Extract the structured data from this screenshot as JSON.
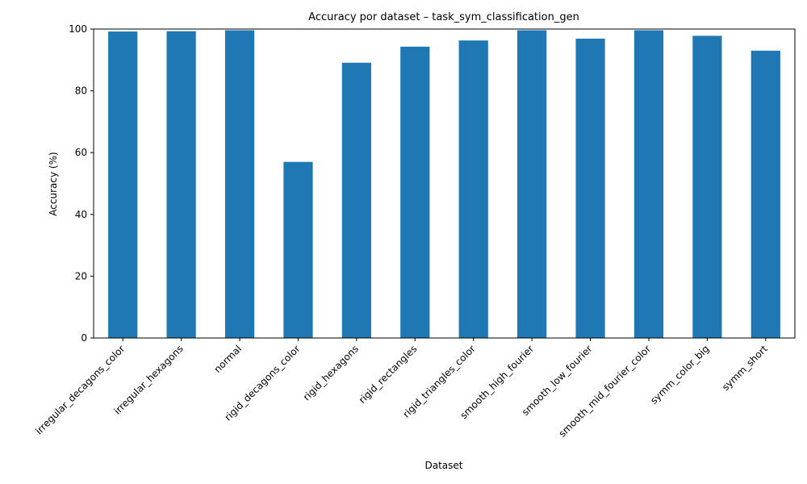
{
  "chart_data": {
    "type": "bar",
    "title": "Accuracy por dataset – task_sym_classification_gen",
    "xlabel": "Dataset",
    "ylabel": "Accuracy (%)",
    "ylim": [
      0,
      100
    ],
    "yticks": [
      "0",
      "20",
      "40",
      "60",
      "80",
      "100"
    ],
    "grid": false,
    "bar_color": "#1f77b4",
    "categories": [
      "irregular_decagons_color",
      "irregular_hexagons",
      "normal",
      "rigid_decagons_color",
      "rigid_hexagons",
      "rigid_rectangles",
      "rigid_triangles_color",
      "smooth_high_fourier",
      "smooth_low_fourier",
      "smooth_mid_fourier_color",
      "symm_color_big",
      "symm_short"
    ],
    "values": [
      99.2,
      99.3,
      99.6,
      57.0,
      89.1,
      94.3,
      96.3,
      99.6,
      96.9,
      99.6,
      97.8,
      93.0
    ]
  }
}
